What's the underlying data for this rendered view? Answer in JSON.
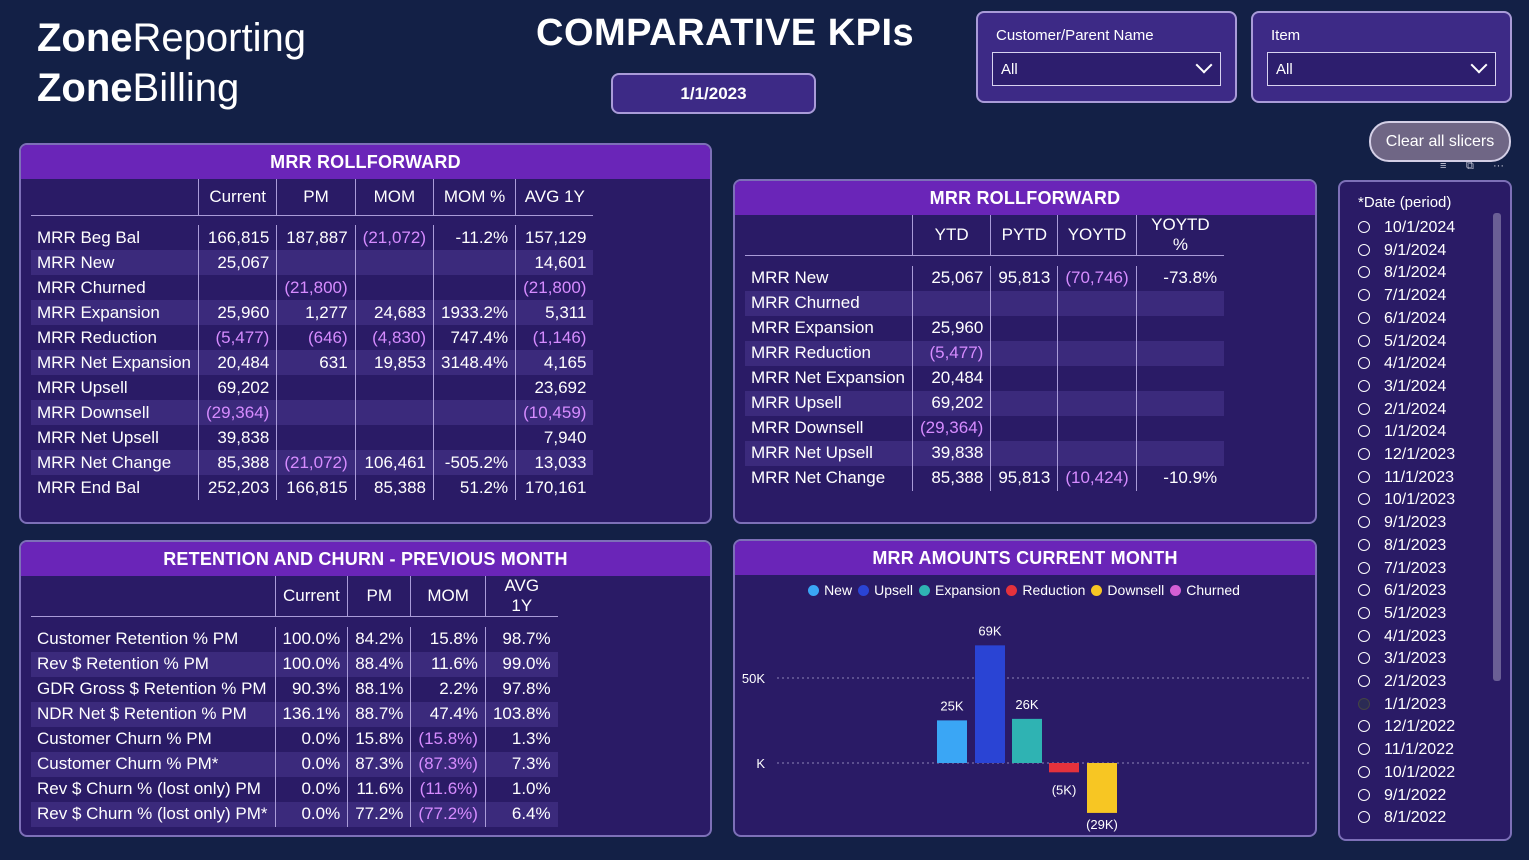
{
  "brand": {
    "line1_bold": "Zone",
    "line1_reg": "Reporting",
    "line2_bold": "Zone",
    "line2_reg": "Billing"
  },
  "title": "COMPARATIVE KPIs",
  "selected_date": "1/1/2023",
  "slicers": {
    "customer": {
      "label": "Customer/Parent Name",
      "value": "All"
    },
    "item": {
      "label": "Item",
      "value": "All"
    }
  },
  "clear_button": "Clear all slicers",
  "mrr_rollforward": {
    "title": "MRR ROLLFORWARD",
    "columns": [
      "",
      "Current",
      "PM",
      "MOM",
      "MOM %",
      "AVG 1Y"
    ],
    "rows": [
      {
        "label": "MRR Beg Bal",
        "cells": [
          "166,815",
          "187,887",
          "(21,072)",
          "-11.2%",
          "157,129"
        ]
      },
      {
        "label": "MRR New",
        "cells": [
          "25,067",
          "",
          "",
          "",
          "14,601"
        ]
      },
      {
        "label": "MRR Churned",
        "cells": [
          "",
          "(21,800)",
          "",
          "",
          "(21,800)"
        ]
      },
      {
        "label": "MRR Expansion",
        "cells": [
          "25,960",
          "1,277",
          "24,683",
          "1933.2%",
          "5,311"
        ]
      },
      {
        "label": "MRR Reduction",
        "cells": [
          "(5,477)",
          "(646)",
          "(4,830)",
          "747.4%",
          "(1,146)"
        ]
      },
      {
        "label": "MRR Net Expansion",
        "cells": [
          "20,484",
          "631",
          "19,853",
          "3148.4%",
          "4,165"
        ]
      },
      {
        "label": "MRR Upsell",
        "cells": [
          "69,202",
          "",
          "",
          "",
          "23,692"
        ]
      },
      {
        "label": "MRR Downsell",
        "cells": [
          "(29,364)",
          "",
          "",
          "",
          "(10,459)"
        ]
      },
      {
        "label": "MRR Net Upsell",
        "cells": [
          "39,838",
          "",
          "",
          "",
          "7,940"
        ]
      },
      {
        "label": "MRR Net Change",
        "cells": [
          "85,388",
          "(21,072)",
          "106,461",
          "-505.2%",
          "13,033"
        ]
      },
      {
        "label": "MRR End Bal",
        "cells": [
          "252,203",
          "166,815",
          "85,388",
          "51.2%",
          "170,161"
        ]
      }
    ]
  },
  "mrr_rollforward_ytd": {
    "title": "MRR ROLLFORWARD",
    "columns": [
      "",
      "YTD",
      "PYTD",
      "YOYTD",
      "YOYTD %"
    ],
    "rows": [
      {
        "label": "MRR New",
        "cells": [
          "25,067",
          "95,813",
          "(70,746)",
          "-73.8%"
        ]
      },
      {
        "label": "MRR Churned",
        "cells": [
          "",
          "",
          "",
          ""
        ]
      },
      {
        "label": "MRR Expansion",
        "cells": [
          "25,960",
          "",
          "",
          ""
        ]
      },
      {
        "label": "MRR Reduction",
        "cells": [
          "(5,477)",
          "",
          "",
          ""
        ]
      },
      {
        "label": "MRR Net Expansion",
        "cells": [
          "20,484",
          "",
          "",
          ""
        ]
      },
      {
        "label": "MRR Upsell",
        "cells": [
          "69,202",
          "",
          "",
          ""
        ]
      },
      {
        "label": "MRR Downsell",
        "cells": [
          "(29,364)",
          "",
          "",
          ""
        ]
      },
      {
        "label": "MRR Net Upsell",
        "cells": [
          "39,838",
          "",
          "",
          ""
        ]
      },
      {
        "label": "MRR Net Change",
        "cells": [
          "85,388",
          "95,813",
          "(10,424)",
          "-10.9%"
        ]
      }
    ]
  },
  "retention": {
    "title": "RETENTION AND CHURN - PREVIOUS MONTH",
    "columns": [
      "",
      "Current",
      "PM",
      "MOM",
      "AVG 1Y"
    ],
    "rows": [
      {
        "label": "Customer Retention % PM",
        "cells": [
          "100.0%",
          "84.2%",
          "15.8%",
          "98.7%"
        ]
      },
      {
        "label": "Rev $ Retention % PM",
        "cells": [
          "100.0%",
          "88.4%",
          "11.6%",
          "99.0%"
        ]
      },
      {
        "label": "GDR Gross $ Retention % PM",
        "cells": [
          "90.3%",
          "88.1%",
          "2.2%",
          "97.8%"
        ]
      },
      {
        "label": "NDR Net $ Retention % PM",
        "cells": [
          "136.1%",
          "88.7%",
          "47.4%",
          "103.8%"
        ]
      },
      {
        "label": "Customer Churn % PM",
        "cells": [
          "0.0%",
          "15.8%",
          "(15.8%)",
          "1.3%"
        ]
      },
      {
        "label": "Customer Churn % PM*",
        "cells": [
          "0.0%",
          "87.3%",
          "(87.3%)",
          "7.3%"
        ]
      },
      {
        "label": "Rev $ Churn % (lost only) PM",
        "cells": [
          "0.0%",
          "11.6%",
          "(11.6%)",
          "1.0%"
        ]
      },
      {
        "label": "Rev $ Churn % (lost only) PM*",
        "cells": [
          "0.0%",
          "77.2%",
          "(77.2%)",
          "6.4%"
        ]
      }
    ]
  },
  "date_slicer": {
    "label": "*Date (period)",
    "selected": "1/1/2023",
    "items": [
      "10/1/2024",
      "9/1/2024",
      "8/1/2024",
      "7/1/2024",
      "6/1/2024",
      "5/1/2024",
      "4/1/2024",
      "3/1/2024",
      "2/1/2024",
      "1/1/2024",
      "12/1/2023",
      "11/1/2023",
      "10/1/2023",
      "9/1/2023",
      "8/1/2023",
      "7/1/2023",
      "6/1/2023",
      "5/1/2023",
      "4/1/2023",
      "3/1/2023",
      "2/1/2023",
      "1/1/2023",
      "12/1/2022",
      "11/1/2022",
      "10/1/2022",
      "9/1/2022",
      "8/1/2022"
    ]
  },
  "chart_data": {
    "type": "bar",
    "title": "MRR AMOUNTS CURRENT MONTH",
    "categories": [
      "New",
      "Upsell",
      "Expansion",
      "Reduction",
      "Downsell",
      "Churned"
    ],
    "values": [
      25067,
      69202,
      25960,
      -5477,
      -29364,
      0
    ],
    "data_labels": [
      "25K",
      "69K",
      "26K",
      "(5K)",
      "(29K)",
      ""
    ],
    "colors": [
      "#3aa6f5",
      "#2a44d4",
      "#2fb3b3",
      "#e5323c",
      "#f7c623",
      "#d35fd4"
    ],
    "y_ticks": [
      {
        "value": 50000,
        "label": "50K"
      },
      {
        "value": 0,
        "label": "K"
      }
    ],
    "ylim": [
      -35000,
      80000
    ],
    "xlabel": "",
    "ylabel": "",
    "legend_position": "top"
  }
}
